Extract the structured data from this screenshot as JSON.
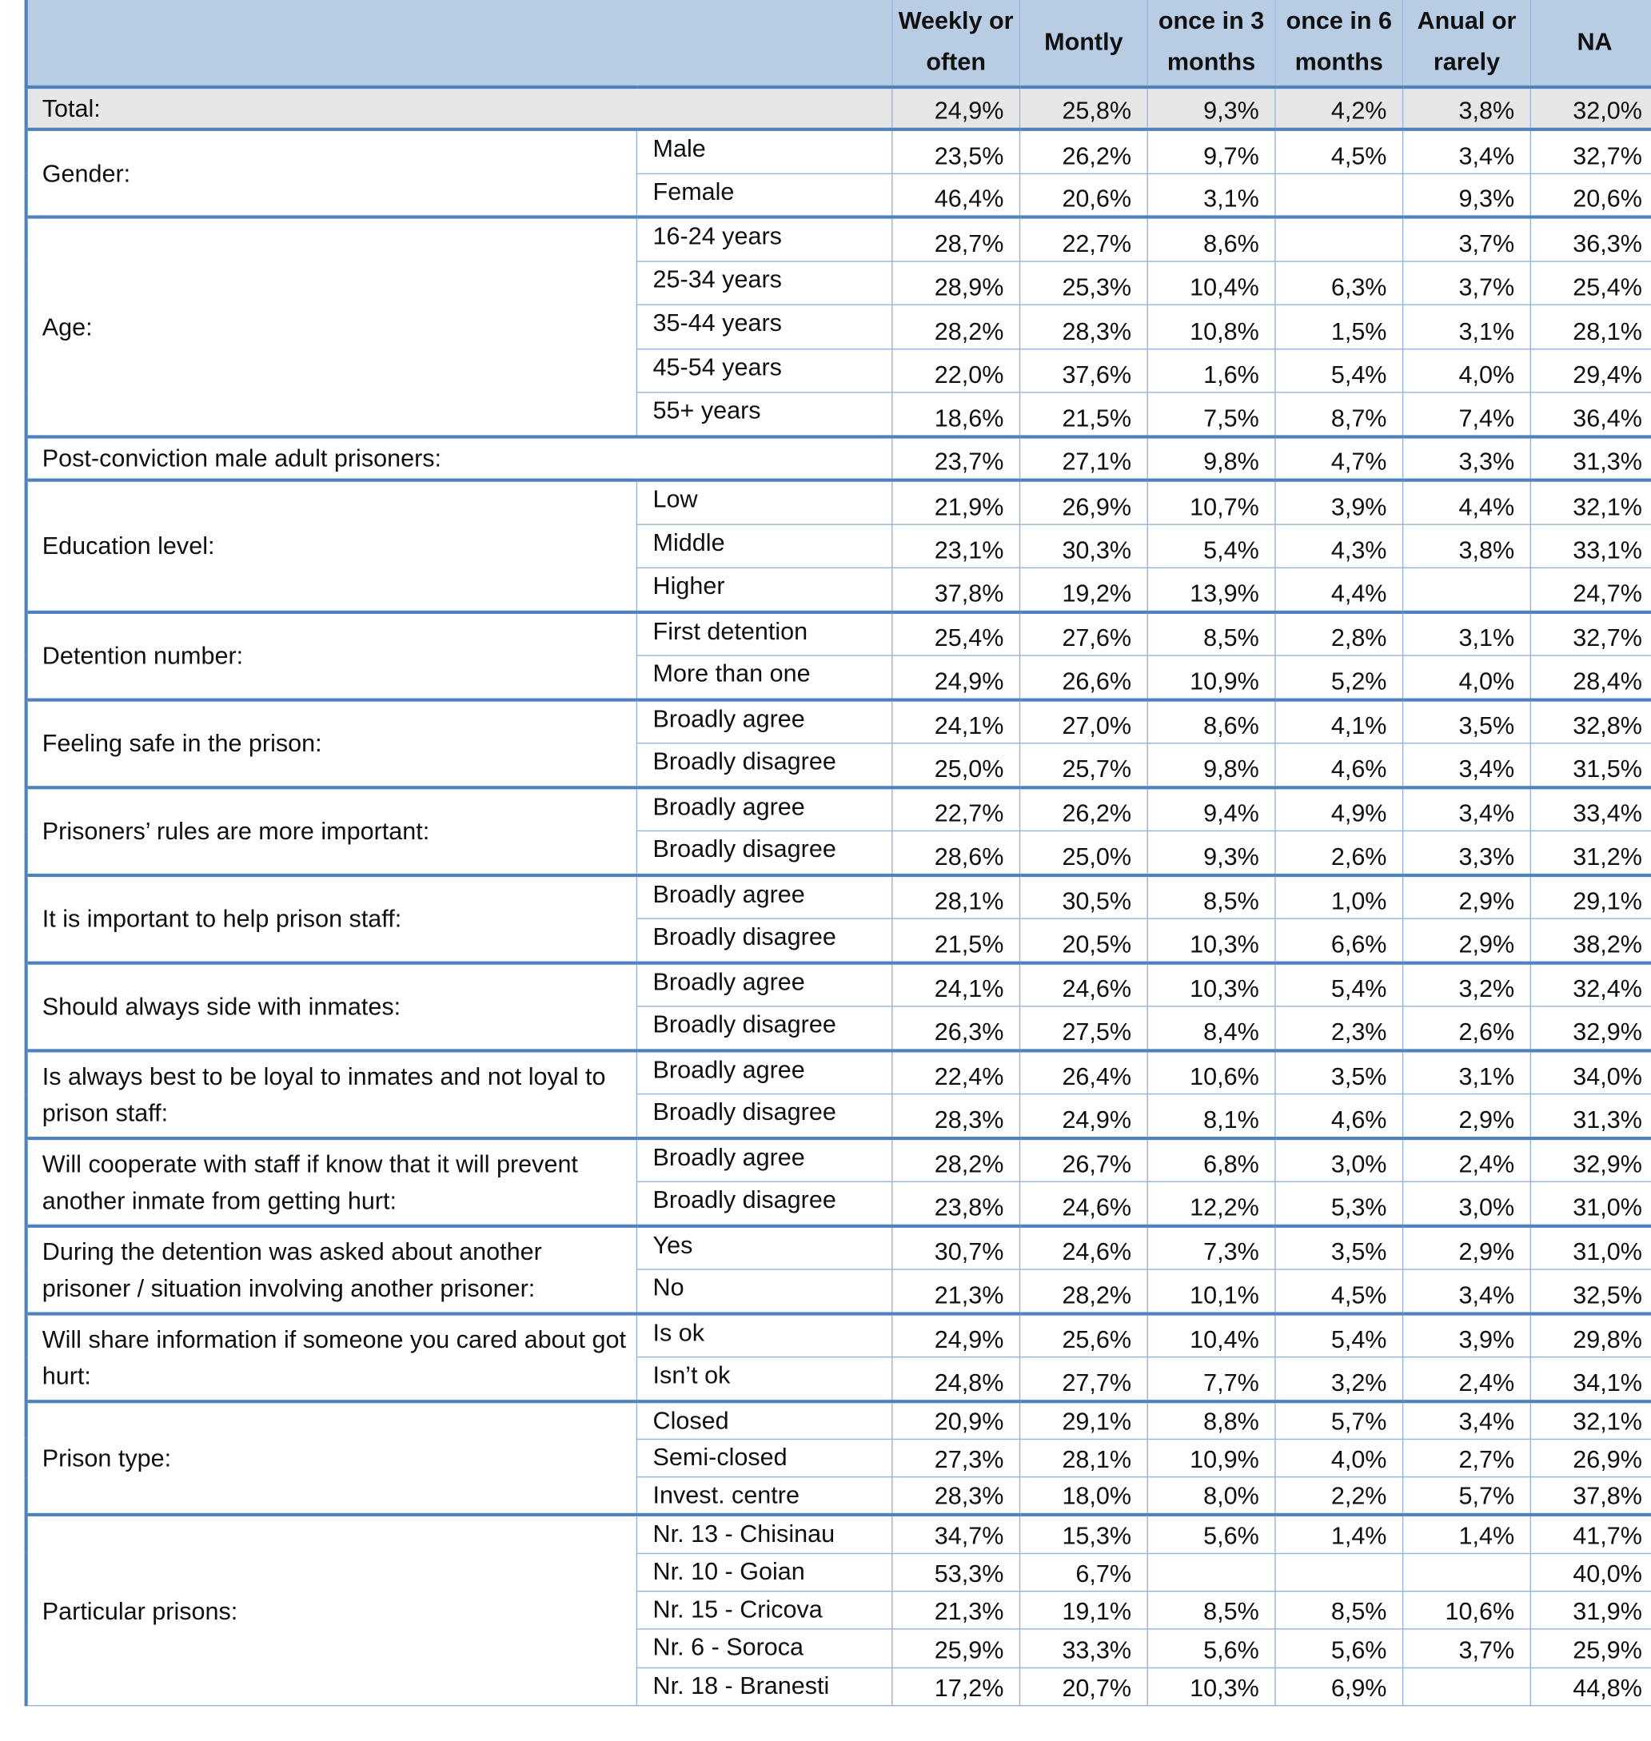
{
  "table": {
    "columns": [
      "Weekly or often",
      "Montly",
      "once in 3 months",
      "once in 6 months",
      "Anual or rarely",
      "NA"
    ],
    "groups": [
      {
        "label": "Total:",
        "rows": [
          {
            "values": [
              "24,9%",
              "25,8%",
              "9,3%",
              "4,2%",
              "3,8%",
              "32,0%"
            ]
          }
        ]
      },
      {
        "label": "Gender:",
        "rows": [
          {
            "label": "Male",
            "values": [
              "23,5%",
              "26,2%",
              "9,7%",
              "4,5%",
              "3,4%",
              "32,7%"
            ]
          },
          {
            "label": "Female",
            "values": [
              "46,4%",
              "20,6%",
              "3,1%",
              null,
              "9,3%",
              "20,6%"
            ]
          }
        ]
      },
      {
        "label": "Age:",
        "rows": [
          {
            "label": "16-24 years",
            "values": [
              "28,7%",
              "22,7%",
              "8,6%",
              null,
              "3,7%",
              "36,3%"
            ]
          },
          {
            "label": "25-34 years",
            "values": [
              "28,9%",
              "25,3%",
              "10,4%",
              "6,3%",
              "3,7%",
              "25,4%"
            ]
          },
          {
            "label": "35-44 years",
            "values": [
              "28,2%",
              "28,3%",
              "10,8%",
              "1,5%",
              "3,1%",
              "28,1%"
            ]
          },
          {
            "label": "45-54 years",
            "values": [
              "22,0%",
              "37,6%",
              "1,6%",
              "5,4%",
              "4,0%",
              "29,4%"
            ]
          },
          {
            "label": "55+ years",
            "values": [
              "18,6%",
              "21,5%",
              "7,5%",
              "8,7%",
              "7,4%",
              "36,4%"
            ]
          }
        ]
      },
      {
        "label": "Post-conviction male adult prisoners:",
        "rows": [
          {
            "values": [
              "23,7%",
              "27,1%",
              "9,8%",
              "4,7%",
              "3,3%",
              "31,3%"
            ]
          }
        ]
      },
      {
        "label": "Education level:",
        "rows": [
          {
            "label": "Low",
            "values": [
              "21,9%",
              "26,9%",
              "10,7%",
              "3,9%",
              "4,4%",
              "32,1%"
            ]
          },
          {
            "label": "Middle",
            "values": [
              "23,1%",
              "30,3%",
              "5,4%",
              "4,3%",
              "3,8%",
              "33,1%"
            ]
          },
          {
            "label": "Higher",
            "values": [
              "37,8%",
              "19,2%",
              "13,9%",
              "4,4%",
              null,
              "24,7%"
            ]
          }
        ]
      },
      {
        "label": "Detention number:",
        "rows": [
          {
            "label": "First detention",
            "values": [
              "25,4%",
              "27,6%",
              "8,5%",
              "2,8%",
              "3,1%",
              "32,7%"
            ]
          },
          {
            "label": "More than one",
            "values": [
              "24,9%",
              "26,6%",
              "10,9%",
              "5,2%",
              "4,0%",
              "28,4%"
            ]
          }
        ]
      },
      {
        "label": "Feeling safe in the prison:",
        "rows": [
          {
            "label": "Broadly agree",
            "values": [
              "24,1%",
              "27,0%",
              "8,6%",
              "4,1%",
              "3,5%",
              "32,8%"
            ]
          },
          {
            "label": "Broadly disagree",
            "values": [
              "25,0%",
              "25,7%",
              "9,8%",
              "4,6%",
              "3,4%",
              "31,5%"
            ]
          }
        ]
      },
      {
        "label": "Prisoners’ rules are more important:",
        "rows": [
          {
            "label": "Broadly agree",
            "values": [
              "22,7%",
              "26,2%",
              "9,4%",
              "4,9%",
              "3,4%",
              "33,4%"
            ]
          },
          {
            "label": "Broadly disagree",
            "values": [
              "28,6%",
              "25,0%",
              "9,3%",
              "2,6%",
              "3,3%",
              "31,2%"
            ]
          }
        ]
      },
      {
        "label": "It is important to help prison staff:",
        "rows": [
          {
            "label": "Broadly agree",
            "values": [
              "28,1%",
              "30,5%",
              "8,5%",
              "1,0%",
              "2,9%",
              "29,1%"
            ]
          },
          {
            "label": "Broadly disagree",
            "values": [
              "21,5%",
              "20,5%",
              "10,3%",
              "6,6%",
              "2,9%",
              "38,2%"
            ]
          }
        ]
      },
      {
        "label": "Should always side with inmates:",
        "rows": [
          {
            "label": "Broadly agree",
            "values": [
              "24,1%",
              "24,6%",
              "10,3%",
              "5,4%",
              "3,2%",
              "32,4%"
            ]
          },
          {
            "label": "Broadly disagree",
            "values": [
              "26,3%",
              "27,5%",
              "8,4%",
              "2,3%",
              "2,6%",
              "32,9%"
            ]
          }
        ]
      },
      {
        "label": "Is always best to be loyal to inmates and not loyal to prison staff:",
        "rows": [
          {
            "label": "Broadly agree",
            "values": [
              "22,4%",
              "26,4%",
              "10,6%",
              "3,5%",
              "3,1%",
              "34,0%"
            ]
          },
          {
            "label": "Broadly disagree",
            "values": [
              "28,3%",
              "24,9%",
              "8,1%",
              "4,6%",
              "2,9%",
              "31,3%"
            ]
          }
        ]
      },
      {
        "label": "Will cooperate with staff if know that it will prevent another inmate from getting hurt:",
        "rows": [
          {
            "label": "Broadly agree",
            "values": [
              "28,2%",
              "26,7%",
              "6,8%",
              "3,0%",
              "2,4%",
              "32,9%"
            ]
          },
          {
            "label": "Broadly disagree",
            "values": [
              "23,8%",
              "24,6%",
              "12,2%",
              "5,3%",
              "3,0%",
              "31,0%"
            ]
          }
        ]
      },
      {
        "label": "During the detention was asked about another prisoner / situation involving another prisoner:",
        "rows": [
          {
            "label": "Yes",
            "values": [
              "30,7%",
              "24,6%",
              "7,3%",
              "3,5%",
              "2,9%",
              "31,0%"
            ]
          },
          {
            "label": "No",
            "values": [
              "21,3%",
              "28,2%",
              "10,1%",
              "4,5%",
              "3,4%",
              "32,5%"
            ]
          }
        ]
      },
      {
        "label": "Will share information if someone you cared about got hurt:",
        "rows": [
          {
            "label": "Is ok",
            "values": [
              "24,9%",
              "25,6%",
              "10,4%",
              "5,4%",
              "3,9%",
              "29,8%"
            ]
          },
          {
            "label": "Isn’t ok",
            "values": [
              "24,8%",
              "27,7%",
              "7,7%",
              "3,2%",
              "2,4%",
              "34,1%"
            ]
          }
        ]
      },
      {
        "label": "Prison type:",
        "rows": [
          {
            "label": "Closed",
            "values": [
              "20,9%",
              "29,1%",
              "8,8%",
              "5,7%",
              "3,4%",
              "32,1%"
            ]
          },
          {
            "label": "Semi-closed",
            "values": [
              "27,3%",
              "28,1%",
              "10,9%",
              "4,0%",
              "2,7%",
              "26,9%"
            ]
          },
          {
            "label": "Invest. centre",
            "values": [
              "28,3%",
              "18,0%",
              "8,0%",
              "2,2%",
              "5,7%",
              "37,8%"
            ]
          }
        ]
      },
      {
        "label": "Particular prisons:",
        "rows": [
          {
            "label": "Nr. 13 - Chisinau",
            "values": [
              "34,7%",
              "15,3%",
              "5,6%",
              "1,4%",
              "1,4%",
              "41,7%"
            ]
          },
          {
            "label": "Nr. 10 - Goian",
            "values": [
              "53,3%",
              "6,7%",
              null,
              null,
              null,
              "40,0%"
            ]
          },
          {
            "label": "Nr. 15 - Cricova",
            "values": [
              "21,3%",
              "19,1%",
              "8,5%",
              "8,5%",
              "10,6%",
              "31,9%"
            ]
          },
          {
            "label": "Nr. 6 - Soroca",
            "values": [
              "25,9%",
              "33,3%",
              "5,6%",
              "5,6%",
              "3,7%",
              "25,9%"
            ]
          },
          {
            "label": "Nr. 18 - Branesti",
            "values": [
              "17,2%",
              "20,7%",
              "10,3%",
              "6,9%",
              null,
              "44,8%"
            ]
          }
        ]
      }
    ]
  }
}
